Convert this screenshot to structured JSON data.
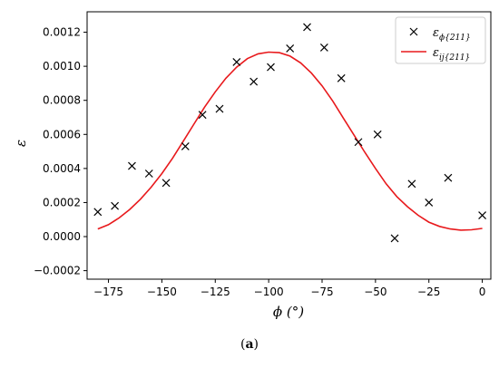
{
  "caption": {
    "open": "(",
    "letter": "a",
    "close": ")"
  },
  "chart_data": {
    "type": "scatter",
    "xlabel": "ϕ (°)",
    "ylabel": "ε",
    "xlim": [
      -185,
      4
    ],
    "ylim": [
      -0.00025,
      0.00132
    ],
    "xticks": [
      -175,
      -150,
      -125,
      -100,
      -75,
      -50,
      -25,
      0
    ],
    "xtick_labels": [
      "−175",
      "−150",
      "−125",
      "−100",
      "−75",
      "−50",
      "−25",
      "0"
    ],
    "yticks": [
      -0.0002,
      0.0,
      0.0002,
      0.0004,
      0.0006,
      0.0008,
      0.001,
      0.0012
    ],
    "ytick_labels": [
      "−0.0002",
      "0.0000",
      "0.0002",
      "0.0004",
      "0.0006",
      "0.0008",
      "0.0010",
      "0.0012"
    ],
    "grid": false,
    "legend_position": "top-right",
    "series": [
      {
        "name": "ε_{ϕ{211}}",
        "legend_main": "ε",
        "legend_sub": "ϕ{211}",
        "type": "scatter",
        "marker": "x",
        "color": "#000000",
        "x": [
          -180,
          -172,
          -164,
          -156,
          -148,
          -139,
          -131,
          -123,
          -115,
          -107,
          -99,
          -90,
          -82,
          -74,
          -66,
          -58,
          -49,
          -41,
          -33,
          -25,
          -16,
          0
        ],
        "y": [
          0.000145,
          0.00018,
          0.000415,
          0.00037,
          0.000315,
          0.00053,
          0.000715,
          0.00075,
          0.001025,
          0.00091,
          0.000995,
          0.001105,
          0.00123,
          0.00111,
          0.00093,
          0.000555,
          0.0006,
          -1e-05,
          0.00031,
          0.0002,
          0.000345,
          0.000125
        ]
      },
      {
        "name": "ε_{ij{211}}",
        "legend_main": "ε",
        "legend_sub": "ij{211}",
        "type": "line",
        "color": "#e8191c",
        "x": [
          -180,
          -175,
          -170,
          -165,
          -160,
          -155,
          -150,
          -145,
          -140,
          -135,
          -130,
          -125,
          -120,
          -115,
          -110,
          -105,
          -100,
          -95,
          -90,
          -85,
          -80,
          -75,
          -70,
          -65,
          -60,
          -55,
          -50,
          -45,
          -40,
          -35,
          -30,
          -25,
          -20,
          -15,
          -10,
          -5,
          0
        ],
        "y": [
          4.5e-05,
          7e-05,
          0.00011,
          0.00016,
          0.00022,
          0.00029,
          0.00037,
          0.00046,
          0.00056,
          0.00066,
          0.00076,
          0.00085,
          0.00093,
          0.000995,
          0.001045,
          0.001073,
          0.001083,
          0.00108,
          0.00106,
          0.00102,
          0.00096,
          0.000885,
          0.000795,
          0.000695,
          0.000595,
          0.000495,
          0.0004,
          0.00031,
          0.000235,
          0.000175,
          0.000125,
          8.5e-05,
          6e-05,
          4.5e-05,
          3.8e-05,
          4e-05,
          4.8e-05
        ]
      }
    ]
  }
}
